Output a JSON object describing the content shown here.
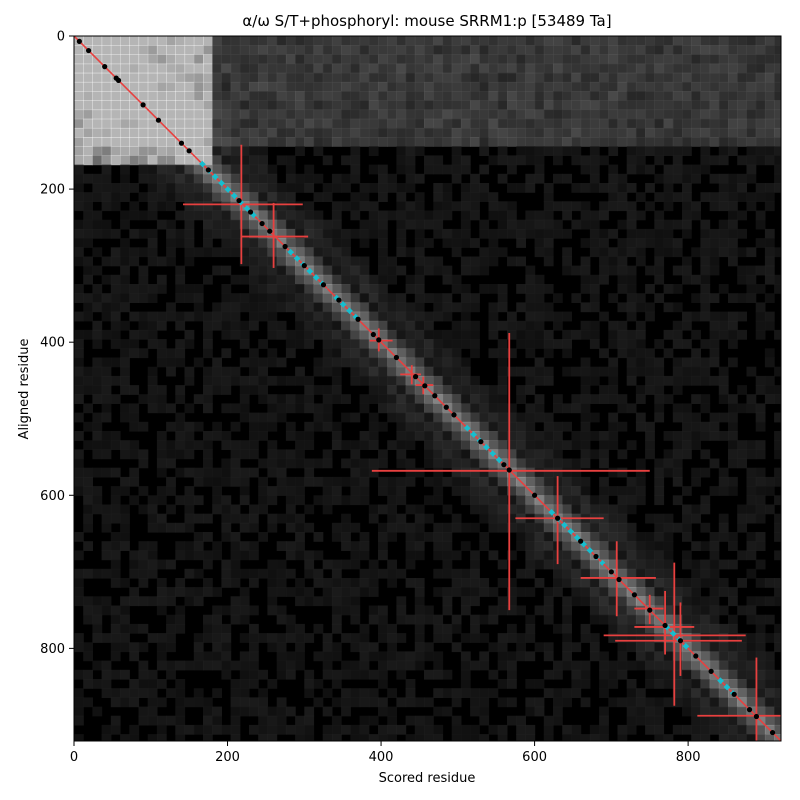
{
  "chart_data": {
    "type": "heatmap",
    "title": "α/ω S/T+phosphoryl: mouse SRRM1:p [53489 Ta]",
    "xlabel": "Scored residue",
    "ylabel": "Aligned residue",
    "xlim": [
      0,
      921
    ],
    "ylim": [
      921,
      0
    ],
    "x_ticks": [
      0,
      200,
      400,
      600,
      800
    ],
    "y_ticks": [
      0,
      200,
      400,
      600,
      800
    ],
    "x_tick_labels": [
      "0",
      "200",
      "400",
      "600",
      "800"
    ],
    "y_tick_labels": [
      "0",
      "200",
      "400",
      "600",
      "800"
    ],
    "grid": false,
    "colormap": "greys",
    "diagonal_line": {
      "from": [
        0,
        0
      ],
      "to": [
        921,
        921
      ],
      "color": "#e8403f"
    },
    "bright_regions": [
      {
        "x": [
          0,
          170
        ],
        "y": [
          0,
          160
        ],
        "intensity": 0.85
      },
      {
        "x": [
          0,
          921
        ],
        "y": [
          0,
          140
        ],
        "intensity": 0.25
      }
    ],
    "highlight_segments": [
      {
        "x": [
          165,
          240
        ],
        "color": "#17becf"
      },
      {
        "x": [
          280,
          330
        ],
        "color": "#17becf"
      },
      {
        "x": [
          340,
          370
        ],
        "color": "#17becf"
      },
      {
        "x": [
          510,
          560
        ],
        "color": "#17becf"
      },
      {
        "x": [
          620,
          690
        ],
        "color": "#17becf"
      },
      {
        "x": [
          770,
          800
        ],
        "color": "#17becf"
      },
      {
        "x": [
          840,
          860
        ],
        "color": "#17becf"
      }
    ],
    "points": [
      {
        "x": 7
      },
      {
        "x": 19
      },
      {
        "x": 40
      },
      {
        "x": 55
      },
      {
        "x": 58
      },
      {
        "x": 90
      },
      {
        "x": 110
      },
      {
        "x": 140
      },
      {
        "x": 150
      },
      {
        "x": 175
      },
      {
        "x": 215
      },
      {
        "x": 230
      },
      {
        "x": 245
      },
      {
        "x": 255
      },
      {
        "x": 275
      },
      {
        "x": 300
      },
      {
        "x": 325
      },
      {
        "x": 345
      },
      {
        "x": 370
      },
      {
        "x": 390
      },
      {
        "x": 397
      },
      {
        "x": 420
      },
      {
        "x": 445
      },
      {
        "x": 457
      },
      {
        "x": 470
      },
      {
        "x": 485
      },
      {
        "x": 495
      },
      {
        "x": 530
      },
      {
        "x": 560
      },
      {
        "x": 567
      },
      {
        "x": 600
      },
      {
        "x": 630
      },
      {
        "x": 660
      },
      {
        "x": 680
      },
      {
        "x": 700
      },
      {
        "x": 710
      },
      {
        "x": 730
      },
      {
        "x": 750
      },
      {
        "x": 770
      },
      {
        "x": 790
      },
      {
        "x": 810
      },
      {
        "x": 830
      },
      {
        "x": 860
      },
      {
        "x": 880
      },
      {
        "x": 889
      },
      {
        "x": 910
      }
    ],
    "error_bars": [
      {
        "x": 218,
        "y": 220,
        "x_err": [
          142,
          298
        ],
        "y_err": [
          142,
          298
        ]
      },
      {
        "x": 260,
        "y": 262,
        "x_err": [
          218,
          305
        ],
        "y_err": [
          218,
          303
        ]
      },
      {
        "x": 397,
        "y": 398,
        "x_err": [
          385,
          415
        ],
        "y_err": [
          382,
          412
        ]
      },
      {
        "x": 440,
        "y": 442,
        "x_err": [
          425,
          452
        ],
        "y_err": [
          430,
          455
        ]
      },
      {
        "x": 455,
        "y": 456,
        "x_err": [
          445,
          468
        ],
        "y_err": [
          445,
          468
        ]
      },
      {
        "x": 567,
        "y": 568,
        "x_err": [
          388,
          750
        ],
        "y_err": [
          388,
          750
        ]
      },
      {
        "x": 630,
        "y": 630,
        "x_err": [
          575,
          690
        ],
        "y_err": [
          575,
          690
        ]
      },
      {
        "x": 707,
        "y": 708,
        "x_err": [
          660,
          758
        ],
        "y_err": [
          660,
          758
        ]
      },
      {
        "x": 750,
        "y": 748,
        "x_err": [
          730,
          768
        ],
        "y_err": [
          730,
          768
        ]
      },
      {
        "x": 770,
        "y": 772,
        "x_err": [
          730,
          808
        ],
        "y_err": [
          725,
          808
        ]
      },
      {
        "x": 782,
        "y": 783,
        "x_err": [
          690,
          875
        ],
        "y_err": [
          688,
          875
        ]
      },
      {
        "x": 790,
        "y": 790,
        "x_err": [
          705,
          870
        ],
        "y_err": [
          740,
          836
        ]
      },
      {
        "x": 889,
        "y": 888,
        "x_err": [
          812,
          921
        ],
        "y_err": [
          812,
          921
        ]
      }
    ],
    "colors": {
      "diagonal": "#e8403f",
      "error_bar": "#e8403f",
      "highlight": "#17becf",
      "point": "#000000",
      "background": "#000000"
    }
  }
}
